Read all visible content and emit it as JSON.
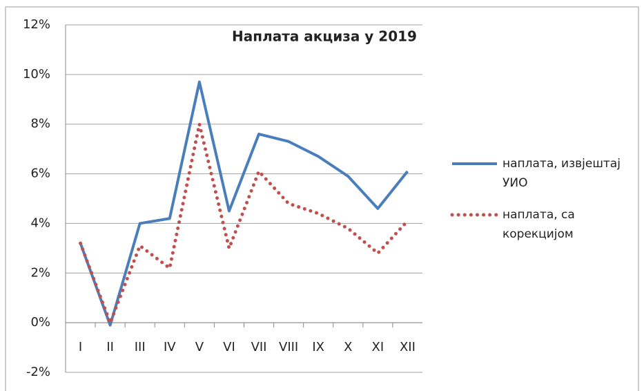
{
  "chart_data": {
    "type": "line",
    "title": "Наплата акциза у 2019",
    "categories": [
      "I",
      "II",
      "III",
      "IV",
      "V",
      "VI",
      "VII",
      "VIII",
      "IX",
      "X",
      "XI",
      "XII"
    ],
    "series": [
      {
        "name": "наплата, извјештај УИО",
        "color": "#4a7ebb",
        "style": "solid",
        "values": [
          3.2,
          -0.1,
          4.0,
          4.2,
          9.7,
          4.5,
          7.6,
          7.3,
          6.7,
          5.9,
          4.6,
          6.1
        ]
      },
      {
        "name": "наплата, са корекцијом",
        "color": "#c0504d",
        "style": "dotted",
        "values": [
          3.2,
          0.0,
          3.1,
          2.2,
          8.0,
          3.0,
          6.1,
          4.8,
          4.4,
          3.8,
          2.8,
          4.1
        ]
      }
    ],
    "ylim": [
      -2,
      12
    ],
    "yticks": [
      {
        "value": -2,
        "label": "-2%"
      },
      {
        "value": 0,
        "label": "0%"
      },
      {
        "value": 2,
        "label": "2%"
      },
      {
        "value": 4,
        "label": "4%"
      },
      {
        "value": 6,
        "label": "6%"
      },
      {
        "value": 8,
        "label": "8%"
      },
      {
        "value": 10,
        "label": "10%"
      },
      {
        "value": 12,
        "label": "12%"
      }
    ],
    "grid": true,
    "legend": "right"
  }
}
